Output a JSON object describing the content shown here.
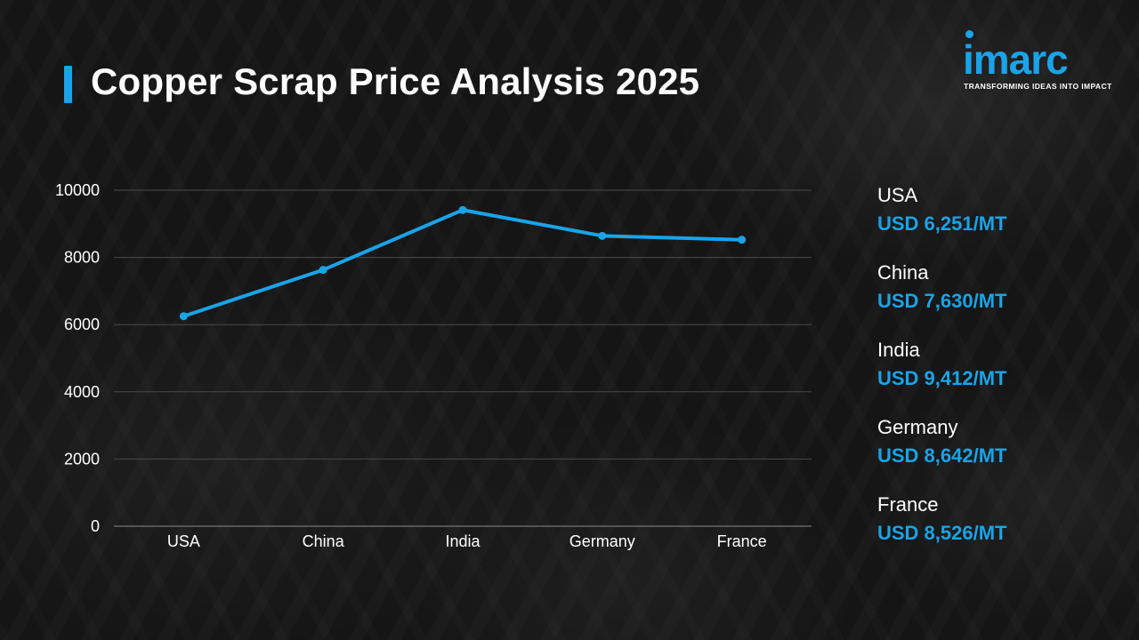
{
  "title": "Copper Scrap Price Analysis 2025",
  "logo": {
    "name": "imarc",
    "tagline": "TRANSFORMING IDEAS INTO IMPACT"
  },
  "colors": {
    "accent": "#1aa3e8",
    "background": "#151515",
    "text": "#ffffff",
    "grid": "#4a4a4a"
  },
  "chart_data": {
    "type": "line",
    "categories": [
      "USA",
      "China",
      "India",
      "Germany",
      "France"
    ],
    "series": [
      {
        "values": [
          6251,
          7630,
          9412,
          8642,
          8526
        ]
      }
    ],
    "yticks": [
      "0",
      "2000",
      "4000",
      "6000",
      "8000",
      "10000"
    ],
    "ylim": [
      0,
      10000
    ],
    "grid": true,
    "markers": true
  },
  "price_list": [
    {
      "country": "USA",
      "price": "USD 6,251/MT"
    },
    {
      "country": "China",
      "price": "USD 7,630/MT"
    },
    {
      "country": "India",
      "price": "USD 9,412/MT"
    },
    {
      "country": "Germany",
      "price": "USD 8,642/MT"
    },
    {
      "country": "France",
      "price": "USD 8,526/MT"
    }
  ]
}
